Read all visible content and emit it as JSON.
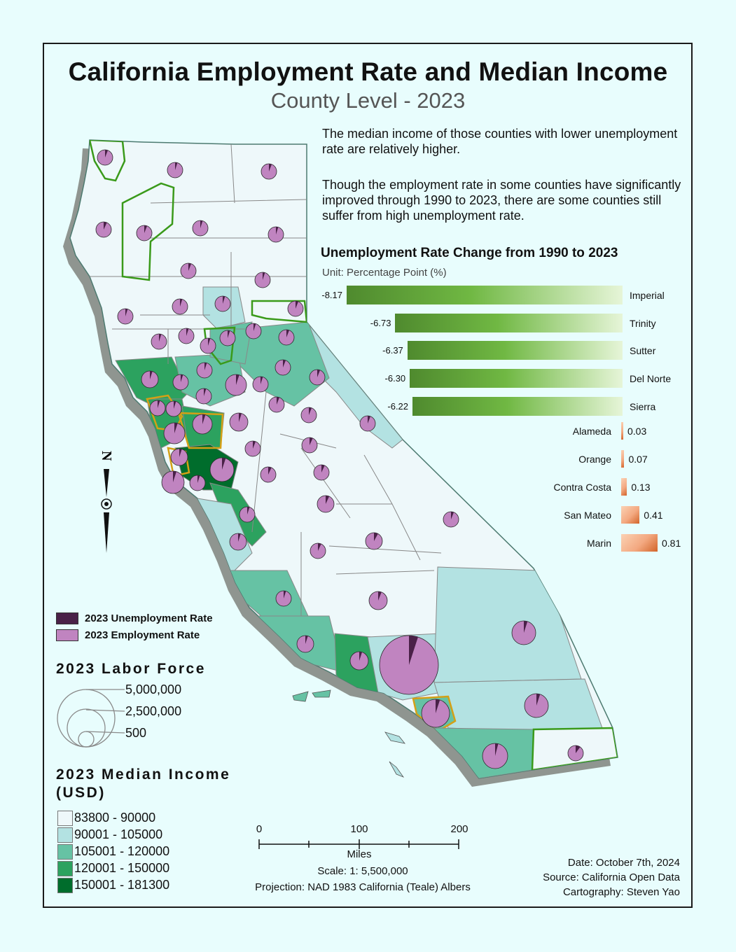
{
  "title": "California Employment Rate and Median Income",
  "subtitle": "County Level - 2023",
  "description": [
    "The median income of those counties with lower unemployment rate are relatively higher.",
    "Though the employment rate in some counties have significantly improved through 1990 to 2023, there are some counties still suffer from high unemployment rate."
  ],
  "chart_data": {
    "type": "bar",
    "title": "Unemployment Rate Change from 1990 to 2023",
    "unit": "Unit: Percentage Point (%)",
    "categories": [
      "Imperial",
      "Trinity",
      "Sutter",
      "Del Norte",
      "Sierra",
      "Alameda",
      "Orange",
      "Contra Costa",
      "San Mateo",
      "Marin"
    ],
    "values": [
      -8.17,
      -6.73,
      -6.37,
      -6.3,
      -6.22,
      0.03,
      0.07,
      0.13,
      0.41,
      0.81
    ],
    "value_labels": [
      "-8.17",
      "-6.73",
      "-6.37",
      "-6.30",
      "-6.22",
      "0.03",
      "0.07",
      "0.13",
      "0.41",
      "0.81"
    ],
    "colors": {
      "negative": "#5a9a36",
      "positive": "#f0a47a"
    }
  },
  "pie_legend": {
    "unemployment_label": "2023 Unemployment Rate",
    "employment_label": "2023 Employment Rate",
    "unemployment_color": "#4a2148",
    "employment_color": "#c084c0"
  },
  "labor_force": {
    "title": "2023 Labor Force",
    "labels": [
      "5,000,000",
      "2,500,000",
      "500"
    ]
  },
  "income": {
    "title": "2023 Median Income (USD)",
    "classes": [
      {
        "label": "83800 - 90000",
        "color": "#eef8fa"
      },
      {
        "label": "90001 - 105000",
        "color": "#b3e2e2"
      },
      {
        "label": "105001 - 120000",
        "color": "#66c2a4"
      },
      {
        "label": "120001 - 150000",
        "color": "#2ca25f"
      },
      {
        "label": "150001 - 181300",
        "color": "#006d2c"
      }
    ]
  },
  "scale": {
    "ticks": [
      "0",
      "100",
      "200"
    ],
    "unit": "Miles",
    "ratio": "Scale: 1: 5,500,000",
    "projection": "Projection: NAD 1983 California (Teale) Albers"
  },
  "meta": {
    "date": "Date: October 7th, 2024",
    "source": "Source: California Open Data",
    "cartography": "Cartography: Steven Yao"
  },
  "north_arrow": "N"
}
